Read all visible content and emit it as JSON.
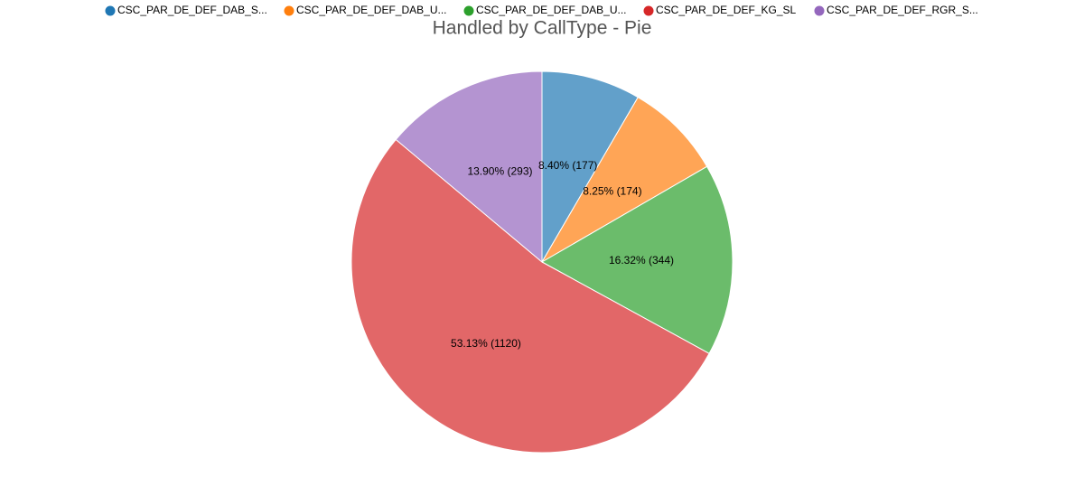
{
  "chart_data": {
    "type": "pie",
    "title": "Handled by CallType - Pie",
    "categories": [
      "CSC_PAR_DE_DEF_DAB_S...",
      "CSC_PAR_DE_DEF_DAB_U...",
      "CSC_PAR_DE_DEF_DAB_U...",
      "CSC_PAR_DE_DEF_KG_SL",
      "CSC_PAR_DE_DEF_RGR_S..."
    ],
    "values": [
      177,
      174,
      344,
      1120,
      293
    ],
    "value_labels": [
      "8.40% (177)",
      "8.25% (174)",
      "16.32% (344)",
      "53.13% (1120)",
      "13.90% (293)"
    ],
    "colors": [
      "#1f77b4",
      "#ff7f0e",
      "#2ca02c",
      "#d62728",
      "#9467bd"
    ],
    "legend": "top"
  }
}
